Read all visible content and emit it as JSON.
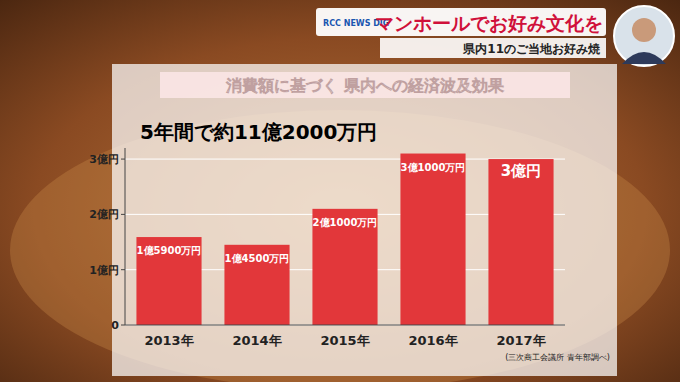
{
  "header": {
    "logo": "RCC NEWS DIG",
    "title": "マンホールでお好み文化を",
    "subtitle": "県内11のご当地お好み焼"
  },
  "chart_data": {
    "type": "bar",
    "title": "消費額に基づく 県内への経済波及効果",
    "subtitle": "5年間で約11億2000万円",
    "source": "(三次商工会議所 青年部調べ)",
    "categories": [
      "2013年",
      "2014年",
      "2015年",
      "2016年",
      "2017年"
    ],
    "values": [
      1.59,
      1.45,
      2.1,
      3.1,
      3
    ],
    "value_labels": [
      "1億5900万円",
      "1億4500万円",
      "2億1000万円",
      "3億1000万円",
      "3億円"
    ],
    "color": "#e2373a",
    "ylim": [
      0,
      3.2
    ],
    "yticks": [
      0,
      {
        "value": 1,
        "label": "1億円"
      },
      {
        "value": 2,
        "label": "2億円"
      },
      {
        "value": 3,
        "label": "3億円"
      }
    ],
    "grid": true,
    "data_labels": true
  }
}
